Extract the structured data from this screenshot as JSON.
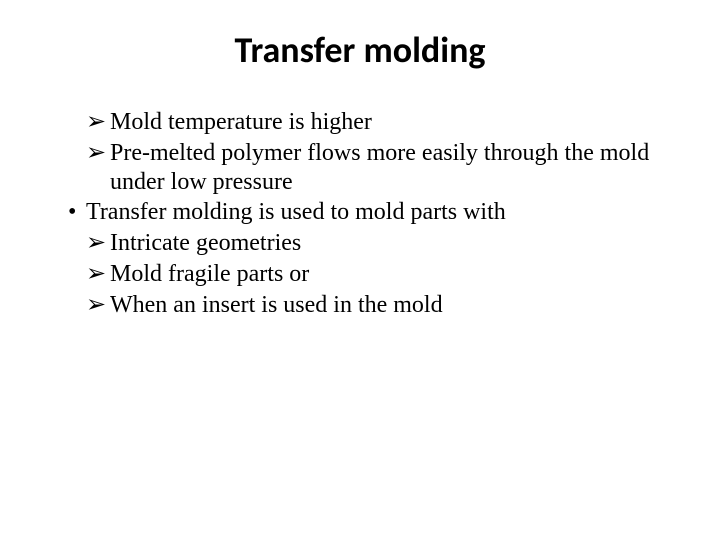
{
  "title": "Transfer molding",
  "items": {
    "arrow1": "Mold temperature is higher",
    "arrow2": "Pre-melted polymer flows more easily through the mold under low pressure",
    "bullet1": "Transfer molding is used to mold parts with",
    "arrow3": "Intricate geometries",
    "arrow4": "Mold fragile parts or",
    "arrow5": "When an insert is used in the mold"
  },
  "style": {
    "title_fontsize": 36,
    "body_fontsize": 24,
    "title_font": "Calibri",
    "body_font": "Times New Roman",
    "text_color": "#000000",
    "background_color": "#ffffff",
    "arrow_glyph": "➢",
    "dot_glyph": "•"
  }
}
